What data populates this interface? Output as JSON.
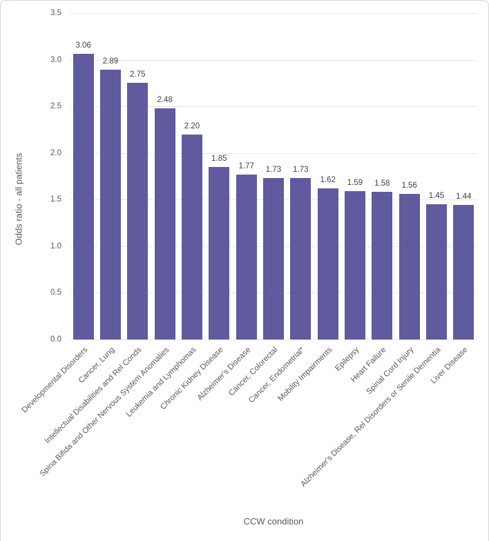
{
  "frame": {
    "background": "#ffffff",
    "border_color": "#d6d6e0"
  },
  "chart_data": {
    "type": "bar",
    "title": "",
    "xlabel": "CCW condition",
    "ylabel": "Odds ratio - all patients",
    "ylim": [
      0,
      3.5
    ],
    "ytick_step": 0.5,
    "grid": true,
    "legend": "none",
    "bar_color": "#5f5b9e",
    "gridline_color": "#e7e7ec",
    "axis_text_color": "#595959",
    "data_label_color": "#404040",
    "categories": [
      "Developmental Disorders",
      "Cancer, Lung",
      "Intellectual Disabilities and Rel Conds",
      "Spina Bifida and Other Nervous System Anomalies",
      "Leukemia and Lymphomas",
      "Chronic Kidney Disease",
      "Alzheimer's Disease",
      "Cancer, Colorectal",
      "Cancer, Endometrial*",
      "Mobility Impairments",
      "Epilepsy",
      "Heart Failure",
      "Spinal Cord Injury",
      "Alzheimer's Disease, Rel Disorders or Senile Dementia",
      "Liver Disease"
    ],
    "values": [
      3.06,
      2.89,
      2.75,
      2.48,
      2.2,
      1.85,
      1.77,
      1.73,
      1.73,
      1.62,
      1.59,
      1.58,
      1.56,
      1.45,
      1.44
    ],
    "data_labels": [
      "3.06",
      "2.89",
      "2.75",
      "2.48",
      "2.20",
      "1.85",
      "1.77",
      "1.73",
      "1.73",
      "1.62",
      "1.59",
      "1.58",
      "1.56",
      "1.45",
      "1.44"
    ]
  }
}
